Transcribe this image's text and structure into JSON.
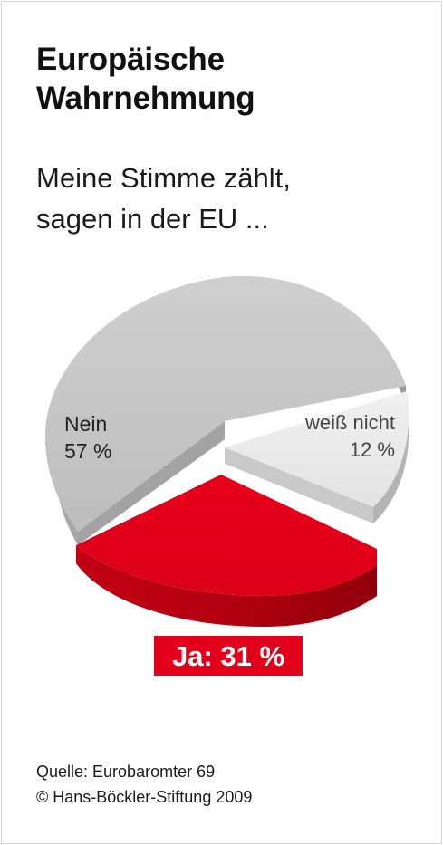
{
  "title_line1": "Europäische",
  "title_line2": "Wahrnehmung",
  "subtitle_line1": "Meine Stimme zählt,",
  "subtitle_line2": "sagen in der EU ...",
  "source_line1": "Quelle: Eurobaromter 69",
  "source_line2": "© Hans-Böckler-Stiftung 2009",
  "colors": {
    "nein": "#c6c6c6",
    "weiss_nicht": "#e8e8e8",
    "ja": "#e2001a"
  },
  "chart_data": {
    "type": "pie",
    "title": "Europäische Wahrnehmung",
    "subtitle": "Meine Stimme zählt, sagen in der EU ...",
    "slices": [
      {
        "label": "Nein",
        "value": 57,
        "value_label": "57 %"
      },
      {
        "label": "weiß nicht",
        "value": 12,
        "value_label": "12 %"
      },
      {
        "label": "Ja",
        "value": 31,
        "value_label": "Ja: 31 %",
        "exploded": true
      }
    ]
  }
}
